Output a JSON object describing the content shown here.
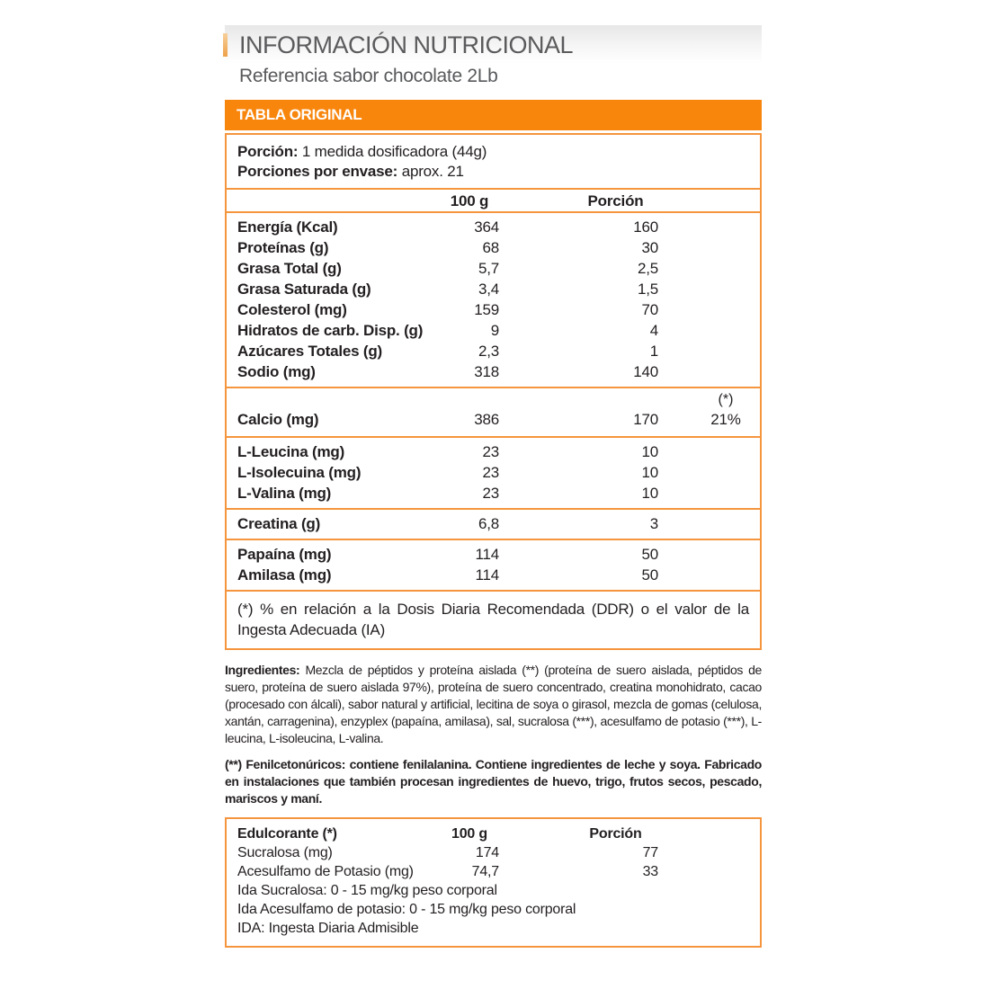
{
  "header": {
    "title": "INFORMACIÓN NUTRICIONAL",
    "subtitle": "Referencia sabor chocolate 2Lb",
    "banner": "TABLA ORIGINAL"
  },
  "colors": {
    "banner_orange": "#F8860D",
    "border_orange": "#F5953D",
    "accent_light_orange": "#EEA149",
    "title_gray": "#58595B",
    "text_dark": "#231F20"
  },
  "serving": {
    "portion_label": "Porción:",
    "portion_value": "1 medida dosificadora (44g)",
    "per_container_label": "Porciones por envase:",
    "per_container_value": "aprox. 21"
  },
  "columns": {
    "per100": "100 g",
    "portion": "Porción"
  },
  "nutrients": [
    {
      "label": "Energía (Kcal)",
      "per100": "364",
      "portion": "160"
    },
    {
      "label": "Proteínas (g)",
      "per100": "68",
      "portion": "30"
    },
    {
      "label": "Grasa Total (g)",
      "per100": "5,7",
      "portion": "2,5"
    },
    {
      "label": "Grasa Saturada (g)",
      "per100": "3,4",
      "portion": "1,5"
    },
    {
      "label": "Colesterol (mg)",
      "per100": "159",
      "portion": "70"
    },
    {
      "label": "Hidratos de carb. Disp. (g)",
      "per100": "9",
      "portion": "4"
    },
    {
      "label": "Azúcares Totales (g)",
      "per100": "2,3",
      "portion": "1"
    },
    {
      "label": "Sodio (mg)",
      "per100": "318",
      "portion": "140"
    }
  ],
  "calcium": {
    "star": "(*)",
    "label": "Calcio (mg)",
    "per100": "386",
    "portion": "170",
    "ddr_pct": "21%"
  },
  "amino_acids": [
    {
      "label": "L-Leucina (mg)",
      "per100": "23",
      "portion": "10"
    },
    {
      "label": "L-Isolecuina (mg)",
      "per100": "23",
      "portion": "10"
    },
    {
      "label": "L-Valina (mg)",
      "per100": "23",
      "portion": "10"
    }
  ],
  "creatine": {
    "label": "Creatina (g)",
    "per100": "6,8",
    "portion": "3"
  },
  "enzymes": [
    {
      "label": "Papaína (mg)",
      "per100": "114",
      "portion": "50"
    },
    {
      "label": "Amilasa (mg)",
      "per100": "114",
      "portion": "50"
    }
  ],
  "ddr_footnote": "(*) % en relación a la Dosis Diaria Recomendada (DDR) o el valor de la Ingesta Adecuada (IA)",
  "ingredients": {
    "label": "Ingredientes:",
    "text": "Mezcla de péptidos y proteína aislada (**) (proteína de suero aislada, péptidos de suero, proteína de suero aislada 97%), proteína de suero concentrado, creatina monohidrato, cacao (procesado con álcali), sabor natural y artificial, lecitina de soya o girasol, mezcla de gomas (celulosa, xantán, carragenina), enzyplex (papaína, amilasa), sal, sucralosa (***), acesulfamo de potasio (***), L-leucina, L-isoleucina, L-valina."
  },
  "allergen_note": "(**) Fenilcetonúricos: contiene fenilalanina. Contiene ingredientes de leche y soya. Fabricado en instalaciones que también procesan ingredientes de huevo, trigo, frutos secos, pescado, mariscos y maní.",
  "sweeteners": {
    "header_label": "Edulcorante (*)",
    "col_per100": "100 g",
    "col_portion": "Porción",
    "rows": [
      {
        "label": "Sucralosa (mg)",
        "per100": "174",
        "portion": "77"
      },
      {
        "label": "Acesulfamo de Potasio (mg)",
        "per100": "74,7",
        "portion": "33"
      }
    ],
    "notes": [
      "Ida Sucralosa: 0 - 15 mg/kg peso corporal",
      "Ida Acesulfamo de potasio: 0 - 15 mg/kg peso corporal",
      "IDA: Ingesta Diaria Admisible"
    ]
  }
}
